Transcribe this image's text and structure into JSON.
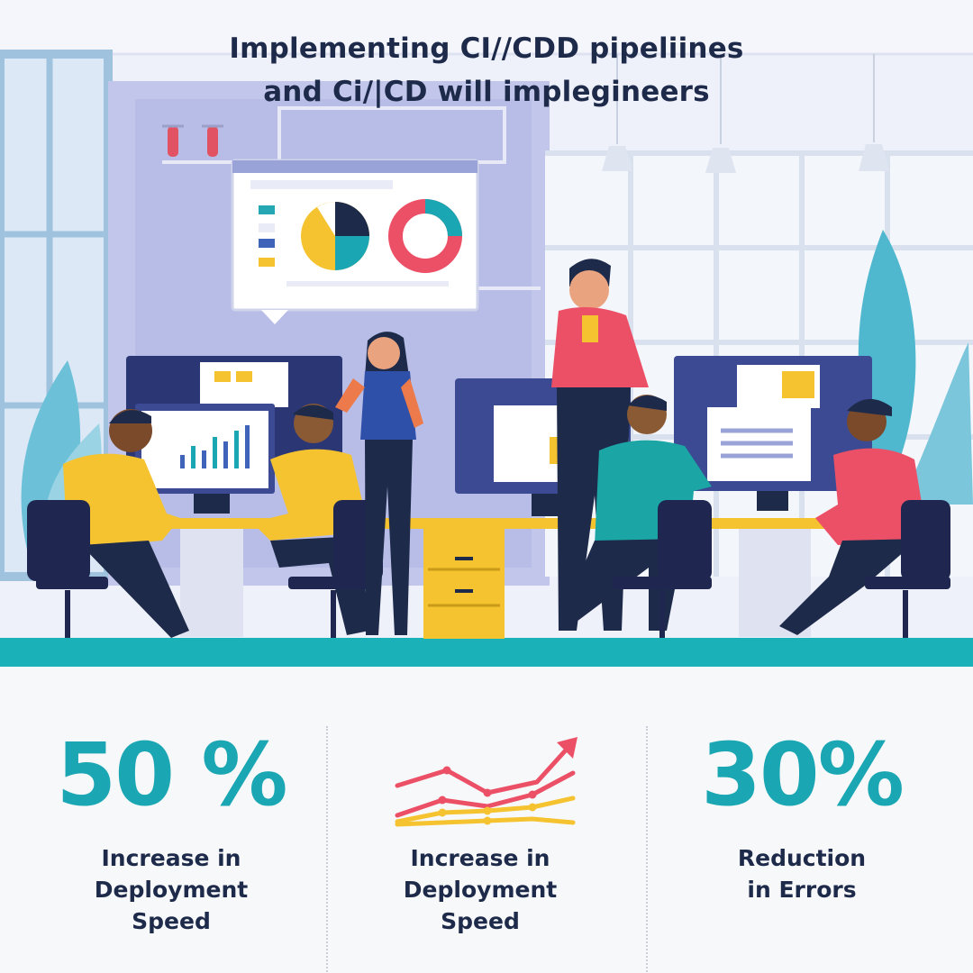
{
  "headline": {
    "line1": "Implementing CI//CDD pipeliines",
    "line2": "and Ci/|CD will implegineers"
  },
  "colors": {
    "accent_teal": "#1aa7b3",
    "text_navy": "#1e2a4a",
    "shirt_yellow": "#f5c330",
    "shirt_pink": "#ec5066",
    "shirt_teal": "#1ba6a5",
    "chair_navy": "#1f2750",
    "floor_teal": "#1bb1b8",
    "wall_lavender": "#b7bde6"
  },
  "scene": {
    "icons": [
      "pie-chart-icon",
      "donut-chart-icon",
      "bar-chart-icon",
      "plant-icon",
      "pendant-lamp-icon"
    ]
  },
  "stats": [
    {
      "value": "50 %",
      "label": "Increase in\nDeployment\nSpeed"
    },
    {
      "value": "",
      "label": "Increase in\nDeployment\nSpeed",
      "icon": "trend-up-chart-icon"
    },
    {
      "value": "30%",
      "label": "Reduction\nin Errors"
    }
  ]
}
